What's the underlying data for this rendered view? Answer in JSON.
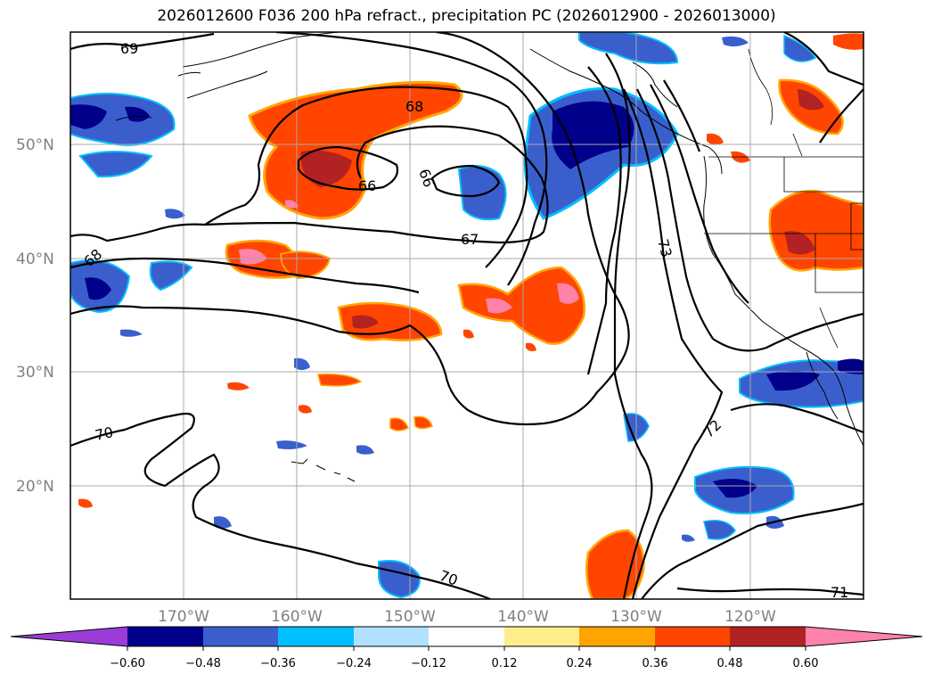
{
  "title": "2026012600 F036 200 hPa refract., precipitation PC (2026012900 - 2026013000)",
  "map": {
    "lat_ticks": [
      "50°N",
      "40°N",
      "30°N",
      "20°N"
    ],
    "lon_ticks": [
      "170°W",
      "160°W",
      "150°W",
      "140°W",
      "130°W",
      "120°W"
    ],
    "contour_labels": [
      {
        "text": "69"
      },
      {
        "text": "68"
      },
      {
        "text": "66"
      },
      {
        "text": "66"
      },
      {
        "text": "67"
      },
      {
        "text": "68"
      },
      {
        "text": "70"
      },
      {
        "text": "70"
      },
      {
        "text": "72"
      },
      {
        "text": "73"
      },
      {
        "text": "71"
      }
    ]
  },
  "colorbar": {
    "colors": {
      "under": "#9c3cd8",
      "c1": "#00008b",
      "c2": "#3a5fcd",
      "c3": "#00bfff",
      "c4": "#b0e2ff",
      "c5": "#ffffff",
      "c6": "#ffec8b",
      "c7": "#ffa500",
      "c8": "#ff4500",
      "c9": "#b22222",
      "c10": "#ff82ab",
      "over": "#ff82ab"
    },
    "labels": [
      "−0.60",
      "−0.48",
      "−0.36",
      "−0.24",
      "−0.12",
      "0.12",
      "0.24",
      "0.36",
      "0.48",
      "0.60"
    ]
  }
}
